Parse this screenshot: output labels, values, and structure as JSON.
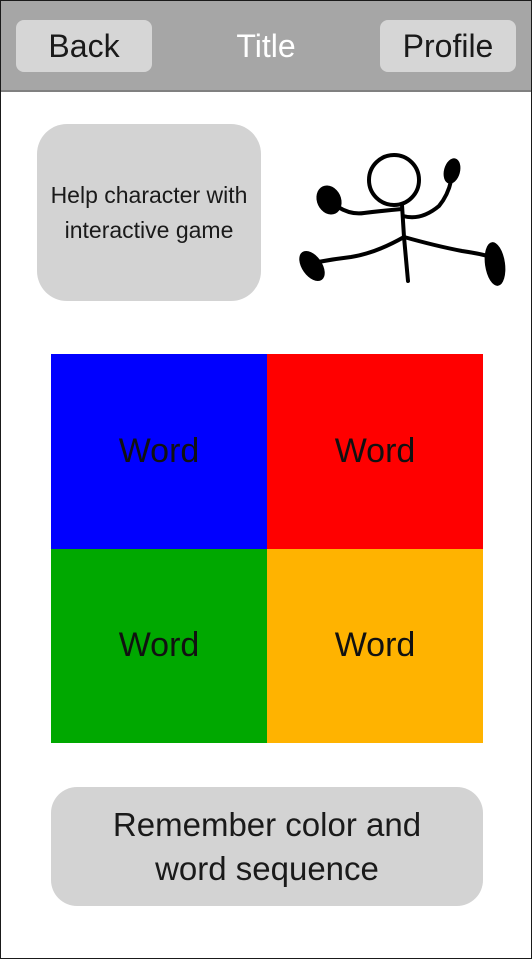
{
  "header": {
    "back_label": "Back",
    "title": "Title",
    "profile_label": "Profile"
  },
  "help_card": {
    "text": "Help character with interactive game"
  },
  "character": {
    "icon": "stick-figure-jumping-icon"
  },
  "grid": {
    "tiles": [
      {
        "word": "Word",
        "color": "#0000ff"
      },
      {
        "word": "Word",
        "color": "#ff0000"
      },
      {
        "word": "Word",
        "color": "#00a800"
      },
      {
        "word": "Word",
        "color": "#ffb300"
      }
    ]
  },
  "instruction": {
    "text": "Remember color and word sequence"
  },
  "colors": {
    "topbar": "#a6a6a6",
    "button": "#d6d6d6",
    "card": "#d3d3d3"
  }
}
